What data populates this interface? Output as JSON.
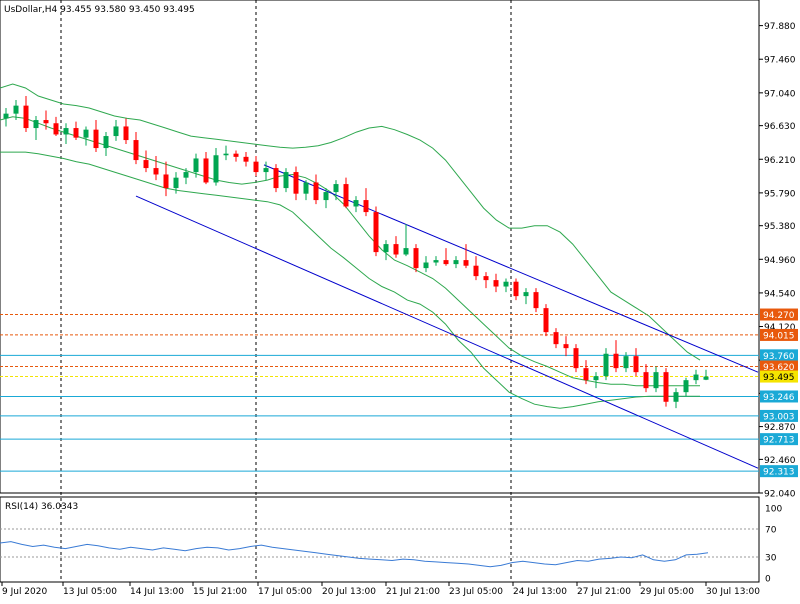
{
  "header": {
    "title": "UsDollar,H4",
    "ohlc": "93.455 93.580 93.450 93.495"
  },
  "rsi": {
    "label": "RSI(14) 36.0343",
    "ticks": [
      "100",
      "70",
      "30",
      "0"
    ]
  },
  "colors": {
    "bull": "#00a651",
    "bear": "#ff0000",
    "band": "#2fa84f",
    "channel": "#0000cc",
    "rsi": "#3a7bd5",
    "orange": "#e8590c",
    "cyan": "#1aa9d6",
    "yellow": "#f5e400"
  },
  "chart_data": [
    {
      "type": "candlestick",
      "title": "UsDollar,H4",
      "ylim": [
        92.04,
        98.1
      ],
      "y_ticks": [
        "97.880",
        "97.460",
        "97.040",
        "96.630",
        "96.210",
        "95.790",
        "95.380",
        "94.960",
        "94.540",
        "94.120",
        "93.700",
        "93.285",
        "92.870",
        "92.460",
        "92.040"
      ],
      "x_labels": [
        "9 Jul 2020",
        "13 Jul 05:00",
        "14 Jul 13:00",
        "15 Jul 21:00",
        "17 Jul 05:00",
        "20 Jul 13:00",
        "21 Jul 21:00",
        "23 Jul 05:00",
        "24 Jul 13:00",
        "27 Jul 21:00",
        "29 Jul 05:00",
        "30 Jul 13:00"
      ],
      "candles": [
        [
          96.72,
          96.85,
          96.62,
          96.78
        ],
        [
          96.78,
          96.95,
          96.7,
          96.88
        ],
        [
          96.88,
          97.0,
          96.55,
          96.6
        ],
        [
          96.6,
          96.75,
          96.45,
          96.7
        ],
        [
          96.7,
          96.82,
          96.58,
          96.66
        ],
        [
          96.66,
          96.74,
          96.5,
          96.52
        ],
        [
          96.52,
          96.66,
          96.4,
          96.6
        ],
        [
          96.6,
          96.68,
          96.45,
          96.48
        ],
        [
          96.48,
          96.62,
          96.38,
          96.58
        ],
        [
          96.58,
          96.7,
          96.3,
          96.35
        ],
        [
          96.35,
          96.55,
          96.25,
          96.5
        ],
        [
          96.5,
          96.7,
          96.44,
          96.62
        ],
        [
          96.62,
          96.72,
          96.4,
          96.45
        ],
        [
          96.45,
          96.55,
          96.15,
          96.2
        ],
        [
          96.2,
          96.32,
          96.05,
          96.1
        ],
        [
          96.1,
          96.25,
          95.95,
          96.02
        ],
        [
          96.02,
          96.18,
          95.75,
          95.85
        ],
        [
          95.85,
          96.05,
          95.78,
          95.98
        ],
        [
          95.98,
          96.1,
          95.9,
          96.05
        ],
        [
          96.05,
          96.28,
          95.98,
          96.22
        ],
        [
          96.22,
          96.3,
          95.9,
          95.92
        ],
        [
          95.92,
          96.35,
          95.88,
          96.26
        ],
        [
          96.26,
          96.38,
          96.2,
          96.28
        ],
        [
          96.28,
          96.32,
          96.18,
          96.24
        ],
        [
          96.24,
          96.3,
          96.12,
          96.18
        ],
        [
          96.18,
          96.25,
          96.0,
          96.05
        ],
        [
          96.05,
          96.18,
          95.95,
          96.1
        ],
        [
          96.1,
          96.15,
          95.8,
          95.85
        ],
        [
          95.85,
          96.1,
          95.8,
          96.05
        ],
        [
          96.05,
          96.12,
          95.7,
          95.78
        ],
        [
          95.78,
          95.95,
          95.7,
          95.92
        ],
        [
          95.92,
          96.02,
          95.65,
          95.7
        ],
        [
          95.7,
          95.85,
          95.6,
          95.8
        ],
        [
          95.8,
          95.95,
          95.7,
          95.9
        ],
        [
          95.9,
          95.98,
          95.6,
          95.62
        ],
        [
          95.62,
          95.75,
          95.55,
          95.7
        ],
        [
          95.7,
          95.85,
          95.5,
          95.55
        ],
        [
          95.55,
          95.62,
          95.0,
          95.05
        ],
        [
          95.05,
          95.2,
          94.95,
          95.15
        ],
        [
          95.15,
          95.25,
          94.98,
          95.02
        ],
        [
          95.02,
          95.4,
          95.0,
          95.1
        ],
        [
          95.1,
          95.15,
          94.8,
          94.85
        ],
        [
          94.85,
          95.0,
          94.8,
          94.92
        ],
        [
          94.92,
          95.0,
          94.88,
          94.95
        ],
        [
          94.95,
          95.1,
          94.88,
          94.9
        ],
        [
          94.9,
          95.0,
          94.85,
          94.95
        ],
        [
          94.95,
          95.15,
          94.85,
          94.88
        ],
        [
          94.88,
          95.0,
          94.7,
          94.75
        ],
        [
          94.75,
          94.8,
          94.6,
          94.7
        ],
        [
          94.7,
          94.78,
          94.55,
          94.62
        ],
        [
          94.62,
          94.72,
          94.55,
          94.68
        ],
        [
          94.68,
          94.72,
          94.45,
          94.5
        ],
        [
          94.5,
          94.6,
          94.4,
          94.55
        ],
        [
          94.55,
          94.6,
          94.3,
          94.35
        ],
        [
          94.35,
          94.4,
          94.0,
          94.05
        ],
        [
          94.05,
          94.1,
          93.85,
          93.9
        ],
        [
          93.9,
          94.0,
          93.75,
          93.85
        ],
        [
          93.85,
          93.9,
          93.55,
          93.6
        ],
        [
          93.6,
          93.7,
          93.4,
          93.45
        ],
        [
          93.45,
          93.55,
          93.35,
          93.5
        ],
        [
          93.5,
          93.85,
          93.45,
          93.78
        ],
        [
          93.78,
          93.95,
          93.55,
          93.6
        ],
        [
          93.6,
          93.8,
          93.55,
          93.75
        ],
        [
          93.75,
          93.85,
          93.5,
          93.55
        ],
        [
          93.55,
          93.65,
          93.3,
          93.35
        ],
        [
          93.35,
          93.62,
          93.3,
          93.55
        ],
        [
          93.55,
          93.6,
          93.12,
          93.18
        ],
        [
          93.18,
          93.35,
          93.1,
          93.3
        ],
        [
          93.3,
          93.48,
          93.25,
          93.45
        ],
        [
          93.45,
          93.58,
          93.4,
          93.52
        ],
        [
          93.455,
          93.58,
          93.45,
          93.495
        ]
      ],
      "bollinger": {
        "upper": [
          97.1,
          97.15,
          97.1,
          97.0,
          96.95,
          96.9,
          96.88,
          96.85,
          96.8,
          96.75,
          96.72,
          96.7,
          96.65,
          96.6,
          96.55,
          96.5,
          96.48,
          96.46,
          96.44,
          96.42,
          96.4,
          96.38,
          96.36,
          96.35,
          96.36,
          96.38,
          96.42,
          96.48,
          96.55,
          96.6,
          96.62,
          96.58,
          96.52,
          96.45,
          96.35,
          96.2,
          96.0,
          95.8,
          95.6,
          95.45,
          95.35,
          95.35,
          95.38,
          95.38,
          95.3,
          95.15,
          94.95,
          94.75,
          94.55,
          94.45,
          94.35,
          94.25,
          94.1,
          93.95,
          93.8,
          93.7
        ],
        "middle": [
          96.7,
          96.74,
          96.72,
          96.66,
          96.6,
          96.55,
          96.5,
          96.45,
          96.4,
          96.35,
          96.3,
          96.25,
          96.2,
          96.15,
          96.1,
          96.05,
          96.0,
          95.95,
          95.92,
          95.9,
          95.92,
          95.95,
          96.0,
          96.02,
          95.98,
          95.9,
          95.8,
          95.65,
          95.45,
          95.25,
          95.08,
          94.95,
          94.88,
          94.8,
          94.72,
          94.6,
          94.45,
          94.3,
          94.15,
          94.0,
          93.85,
          93.75,
          93.68,
          93.62,
          93.55,
          93.48,
          93.45,
          93.42,
          93.4,
          93.4,
          93.38,
          93.38,
          93.38,
          93.38,
          93.38,
          93.38
        ],
        "lower": [
          96.3,
          96.3,
          96.3,
          96.28,
          96.25,
          96.22,
          96.18,
          96.15,
          96.1,
          96.05,
          96.0,
          95.95,
          95.9,
          95.85,
          95.82,
          95.8,
          95.78,
          95.76,
          95.74,
          95.72,
          95.7,
          95.68,
          95.64,
          95.55,
          95.4,
          95.25,
          95.1,
          94.98,
          94.85,
          94.72,
          94.62,
          94.55,
          94.45,
          94.4,
          94.3,
          94.15,
          93.95,
          93.8,
          93.6,
          93.45,
          93.3,
          93.22,
          93.15,
          93.12,
          93.1,
          93.12,
          93.15,
          93.18,
          93.2,
          93.22,
          93.24,
          93.25,
          93.25,
          93.25,
          93.25,
          93.25
        ]
      },
      "channel_lines": [
        {
          "from": [
            "17 Jul 05:00",
            96.14
          ],
          "to": [
            "30 Jul 13:00",
            93.55
          ]
        },
        {
          "from": [
            "14 Jul 13:00",
            95.75
          ],
          "to": [
            "30 Jul 13:00",
            92.35
          ]
        }
      ],
      "levels": [
        {
          "value": "94.270",
          "style": "orange-dashed"
        },
        {
          "value": "94.015",
          "style": "orange-dashed"
        },
        {
          "value": "93.760",
          "style": "cyan"
        },
        {
          "value": "93.620",
          "style": "orange-dashed"
        },
        {
          "value": "93.495",
          "style": "yellow-dashed"
        },
        {
          "value": "93.246",
          "style": "cyan"
        },
        {
          "value": "93.003",
          "style": "cyan"
        },
        {
          "value": "92.713",
          "style": "cyan"
        },
        {
          "value": "92.313",
          "style": "cyan"
        }
      ],
      "vertical_dividers": [
        "13 Jul 05:00",
        "17 Jul 05:00",
        "24 Jul 13:00"
      ]
    },
    {
      "type": "line",
      "title": "RSI(14) 36.0343",
      "ylim": [
        0,
        100
      ],
      "levels": [
        70,
        30
      ],
      "series": [
        {
          "values": [
            50,
            52,
            48,
            45,
            47,
            44,
            42,
            45,
            48,
            46,
            43,
            41,
            44,
            42,
            40,
            43,
            41,
            39,
            42,
            44,
            43,
            40,
            42,
            45,
            47,
            44,
            42,
            40,
            38,
            36,
            34,
            32,
            30,
            28,
            27,
            26,
            25,
            27,
            26,
            24,
            23,
            22,
            21,
            20,
            18,
            16,
            18,
            22,
            24,
            22,
            20,
            19,
            22,
            25,
            24,
            27,
            28,
            30,
            29,
            33,
            26,
            24,
            26,
            33,
            34,
            36
          ]
        }
      ]
    }
  ]
}
